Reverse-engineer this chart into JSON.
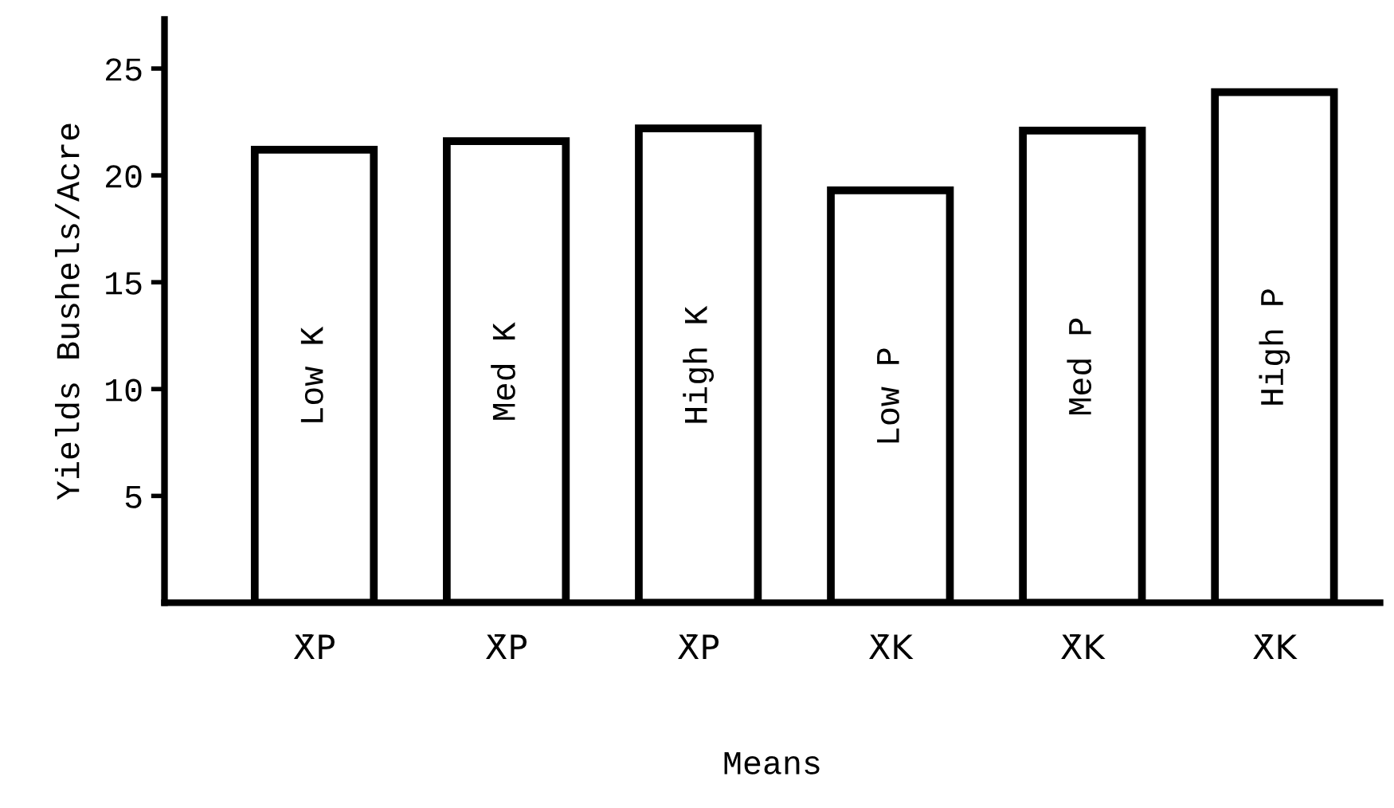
{
  "chart_data": {
    "type": "bar",
    "categories": [
      "X̄P",
      "X̄P",
      "X̄P",
      "X̄K",
      "X̄K",
      "X̄K"
    ],
    "values": [
      21.2,
      21.6,
      22.2,
      19.3,
      22.1,
      23.9
    ],
    "color": "#ffffff",
    "annotations": [
      "Low K",
      "Med K",
      "High K",
      "Low P",
      "Med P",
      "High P"
    ],
    "xlabel": "Means",
    "ylabel": "Yields Bushels/Acre",
    "ylim": [
      0,
      27.3
    ],
    "yticks": [
      5,
      10,
      15,
      20,
      25
    ],
    "grid": false,
    "legend": false
  }
}
